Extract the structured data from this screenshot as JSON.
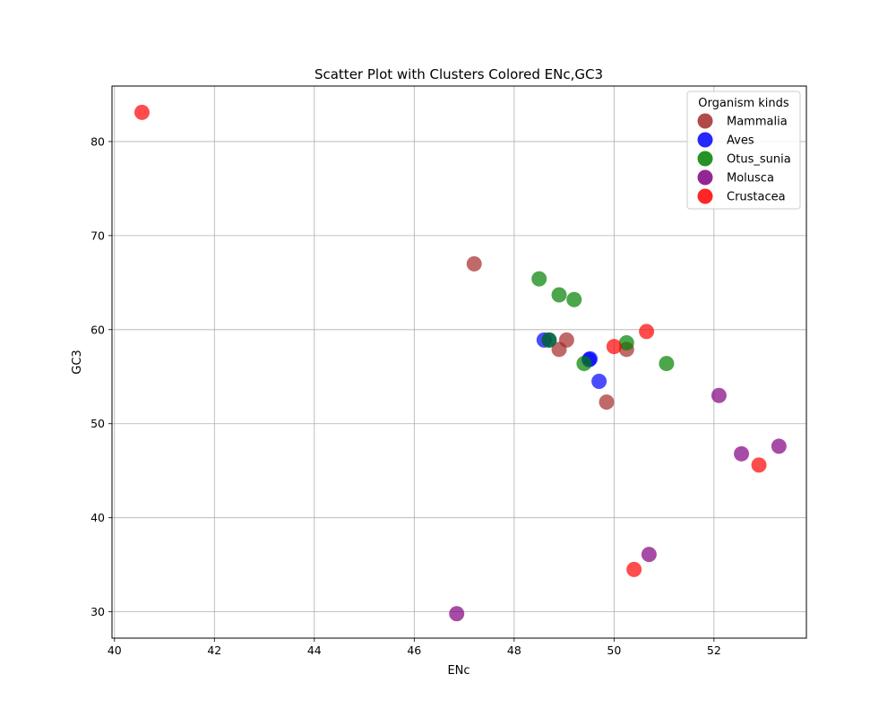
{
  "chart_data": {
    "type": "scatter",
    "title": "Scatter Plot with Clusters Colored ENc,GC3",
    "xlabel": "ENc",
    "ylabel": "GC3",
    "xlim": [
      39.95,
      53.85
    ],
    "ylim": [
      27.2,
      85.9
    ],
    "xticks": [
      40,
      42,
      44,
      46,
      48,
      50,
      52
    ],
    "yticks": [
      30,
      40,
      50,
      60,
      70,
      80
    ],
    "grid": true,
    "legend": {
      "title": "Organism kinds",
      "placement": "top-right"
    },
    "series": [
      {
        "name": "Mammalia",
        "color": "#a52a2a",
        "points": [
          [
            47.2,
            67.0
          ],
          [
            48.9,
            57.9
          ],
          [
            49.05,
            58.9
          ],
          [
            49.85,
            52.3
          ],
          [
            50.25,
            57.9
          ]
        ]
      },
      {
        "name": "Aves",
        "color": "#0000ff",
        "points": [
          [
            48.6,
            58.9
          ],
          [
            48.7,
            58.9
          ],
          [
            49.5,
            56.8
          ],
          [
            49.52,
            56.9
          ],
          [
            49.7,
            54.5
          ]
        ]
      },
      {
        "name": "Otus_sunia",
        "color": "#008000",
        "points": [
          [
            48.5,
            65.4
          ],
          [
            48.7,
            58.9
          ],
          [
            48.9,
            63.7
          ],
          [
            49.2,
            63.2
          ],
          [
            49.4,
            56.4
          ],
          [
            50.25,
            58.6
          ],
          [
            51.05,
            56.4
          ]
        ]
      },
      {
        "name": "Molusca",
        "color": "#800080",
        "points": [
          [
            46.85,
            29.8
          ],
          [
            50.7,
            36.1
          ],
          [
            52.1,
            53.0
          ],
          [
            52.55,
            46.8
          ],
          [
            53.3,
            47.6
          ]
        ]
      },
      {
        "name": "Crustacea",
        "color": "#ff0000",
        "points": [
          [
            40.55,
            83.1
          ],
          [
            50.0,
            58.2
          ],
          [
            50.4,
            34.5
          ],
          [
            50.65,
            59.8
          ],
          [
            52.9,
            45.6
          ]
        ]
      }
    ]
  }
}
